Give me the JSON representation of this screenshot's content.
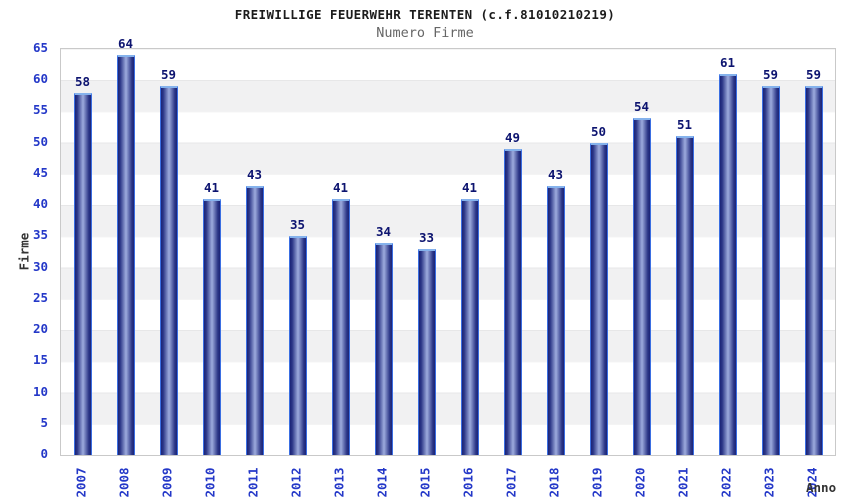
{
  "chart_data": {
    "type": "bar",
    "title": "FREIWILLIGE FEUERWEHR TERENTEN (c.f.81010210219)",
    "subtitle": "Numero Firme",
    "xlabel": "Anno",
    "ylabel": "Firme",
    "categories": [
      "2007",
      "2008",
      "2009",
      "2010",
      "2011",
      "2012",
      "2013",
      "2014",
      "2015",
      "2016",
      "2017",
      "2018",
      "2019",
      "2020",
      "2021",
      "2022",
      "2023",
      "2024"
    ],
    "values": [
      58,
      64,
      59,
      41,
      43,
      35,
      41,
      34,
      33,
      41,
      49,
      43,
      50,
      54,
      51,
      61,
      59,
      59
    ],
    "ylim": [
      0,
      65
    ],
    "ytick_step": 5,
    "yticks": [
      0,
      5,
      10,
      15,
      20,
      25,
      30,
      35,
      40,
      45,
      50,
      55,
      60,
      65
    ],
    "legend": "none",
    "grid": "horizontal-stripes-every-5-units",
    "bar_labels_shown": true,
    "colors": {
      "bar_dark": "#1b2376",
      "bar_light": "#9dabdd",
      "bar_border": "#3a6ee2",
      "bar_cap": "#85b2ec",
      "value_label": "#0d1470",
      "tick_label": "#2438c8",
      "title": "#1c1c1c",
      "subtitle": "#666666",
      "axis_title": "#333333",
      "stripe": "#f1f1f2",
      "plot_border": "#c9c9c9"
    }
  }
}
